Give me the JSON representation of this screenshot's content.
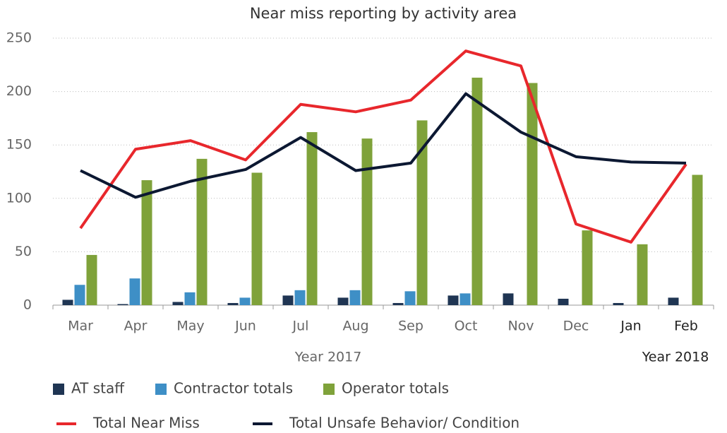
{
  "chart_data": {
    "type": "bar",
    "title": "Near miss reporting by activity area",
    "categories": [
      "Mar",
      "Apr",
      "May",
      "Jun",
      "Jul",
      "Aug",
      "Sep",
      "Oct",
      "Nov",
      "Dec",
      "Jan",
      "Feb"
    ],
    "groups": [
      {
        "label": "Year 2017",
        "from": 0,
        "to": 9
      },
      {
        "label": "Year 2018",
        "from": 10,
        "to": 11
      }
    ],
    "series": [
      {
        "name": "AT staff",
        "type": "bar",
        "color": "#1f3553",
        "values": [
          5,
          1,
          3,
          2,
          9,
          7,
          2,
          9,
          11,
          6,
          2,
          7
        ]
      },
      {
        "name": "Contractor totals",
        "type": "bar",
        "color": "#3e8fc6",
        "values": [
          19,
          25,
          12,
          7,
          14,
          14,
          13,
          11,
          0,
          0,
          0,
          0
        ]
      },
      {
        "name": "Operator totals",
        "type": "bar",
        "color": "#7fa23a",
        "values": [
          47,
          117,
          137,
          124,
          162,
          156,
          173,
          213,
          208,
          70,
          57,
          122
        ]
      },
      {
        "name": "Total Near Miss",
        "type": "line",
        "color": "#e8272c",
        "values": [
          72,
          146,
          154,
          136,
          188,
          181,
          192,
          238,
          224,
          76,
          59,
          132
        ]
      },
      {
        "name": "Total Unsafe Behavior/ Condition",
        "type": "line",
        "color": "#0c1832",
        "values": [
          126,
          101,
          116,
          127,
          157,
          126,
          133,
          198,
          162,
          139,
          134,
          133
        ]
      }
    ],
    "ylim": [
      0,
      250
    ],
    "yticks": [
      0,
      50,
      100,
      150,
      200,
      250
    ],
    "grid": true
  }
}
